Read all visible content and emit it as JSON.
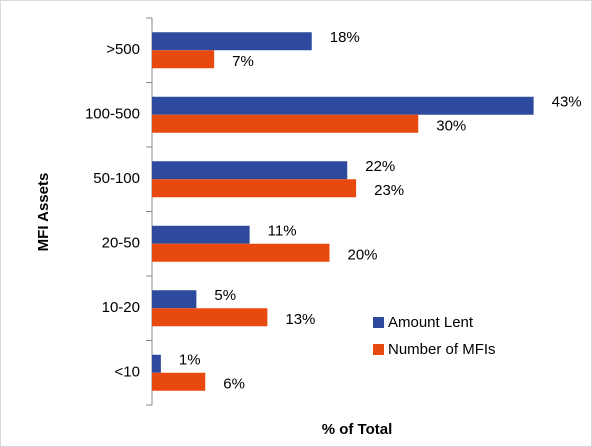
{
  "chart_data": {
    "type": "hbar",
    "xlabel": "% of Total",
    "ylabel": "MFI Assets",
    "categories": [
      ">500",
      "100-500",
      "50-100",
      "20-50",
      "10-20",
      "<10"
    ],
    "series": [
      {
        "name": "Amount Lent",
        "color": "#2e4a9e",
        "values": [
          18,
          43,
          22,
          11,
          5,
          1
        ],
        "value_labels": [
          "18%",
          "43%",
          "22%",
          "11%",
          "5%",
          "1%"
        ]
      },
      {
        "name": "Number of MFIs",
        "color": "#e8490f",
        "values": [
          7,
          30,
          23,
          20,
          13,
          6
        ],
        "value_labels": [
          "7%",
          "30%",
          "23%",
          "20%",
          "13%",
          "6%"
        ]
      }
    ],
    "xlim": [
      0,
      48
    ],
    "legend": "lower right"
  }
}
